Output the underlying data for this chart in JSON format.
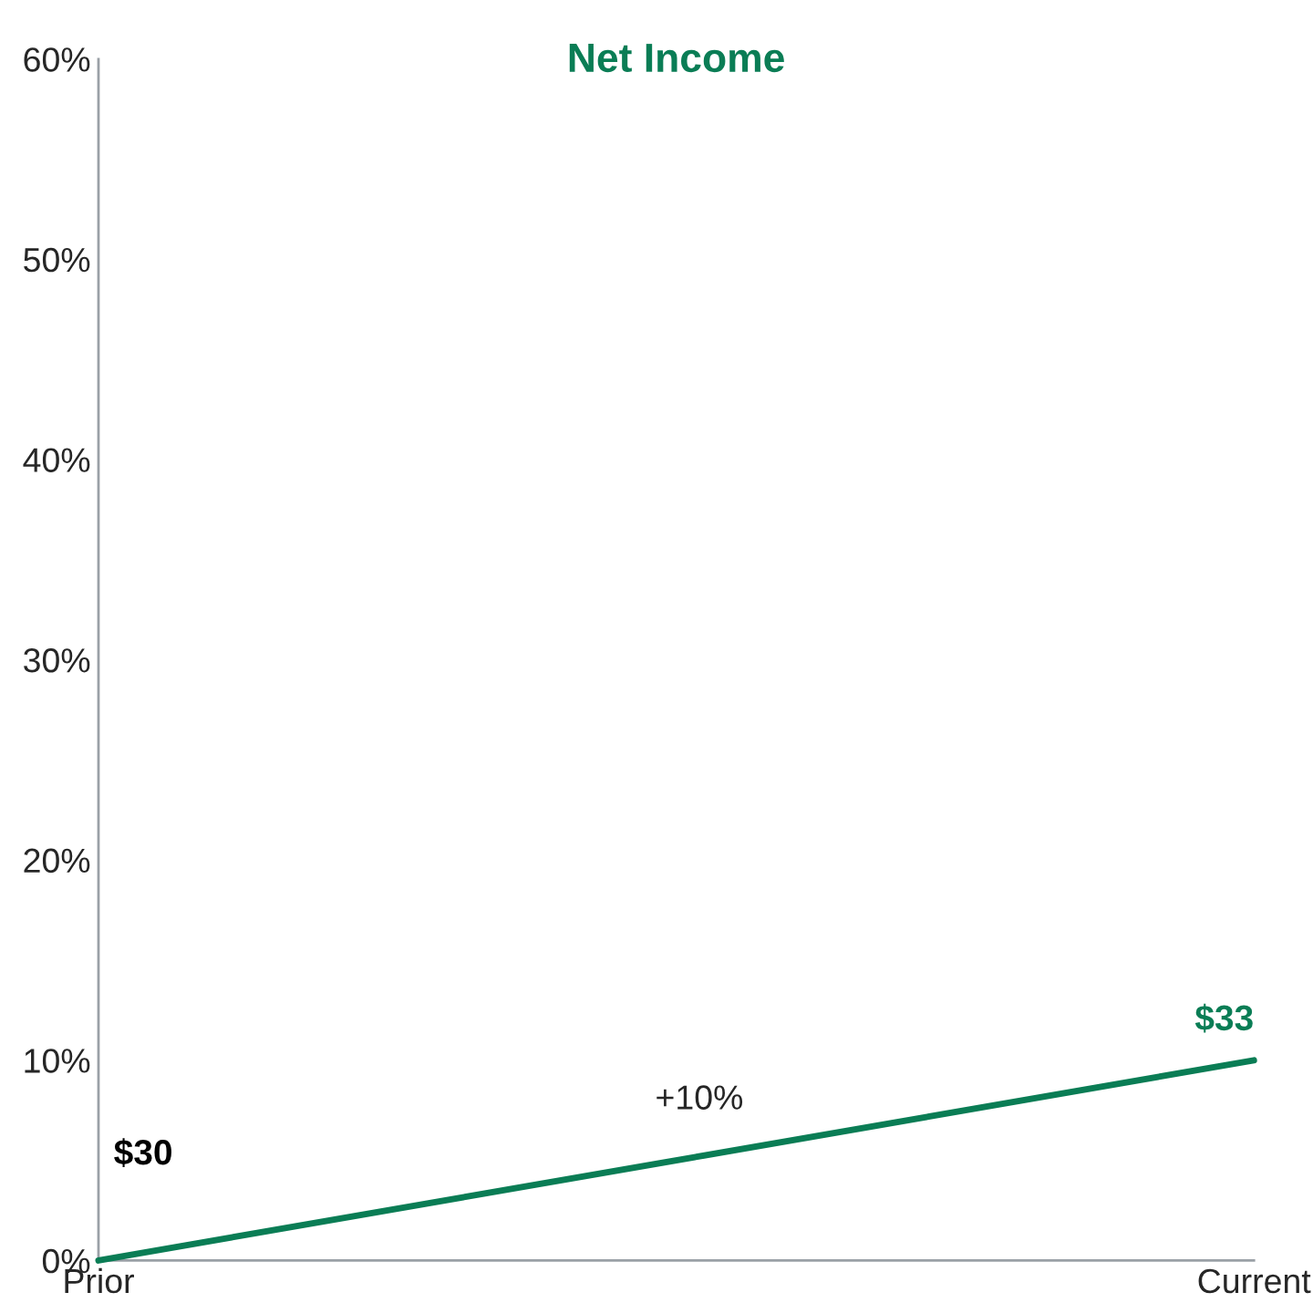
{
  "chart_data": {
    "type": "line",
    "title": "Net Income",
    "categories": [
      "Prior",
      "Current"
    ],
    "series": [
      {
        "color": "#0a7d55",
        "values": [
          0,
          10
        ]
      }
    ],
    "ylim": [
      0,
      60
    ],
    "yticks": [
      {
        "value": 0,
        "label": "0%"
      },
      {
        "value": 10,
        "label": "10%"
      },
      {
        "value": 20,
        "label": "20%"
      },
      {
        "value": 30,
        "label": "30%"
      },
      {
        "value": 40,
        "label": "40%"
      },
      {
        "value": 50,
        "label": "50%"
      },
      {
        "value": 60,
        "label": "60%"
      }
    ],
    "annotations": [
      "+10%",
      "$30",
      "$33"
    ],
    "grid": false,
    "legend": false,
    "marker": "none",
    "line_style": "solid"
  }
}
